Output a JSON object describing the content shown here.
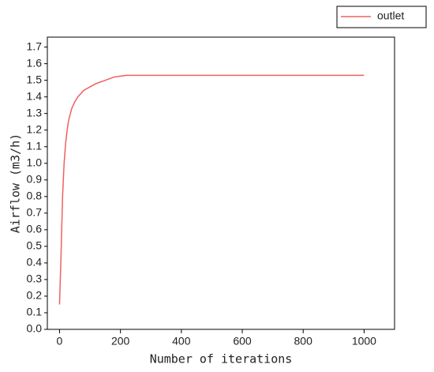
{
  "chart_data": {
    "type": "line",
    "xlabel": "Number of iterations",
    "ylabel": "Airflow (m3/h)",
    "x": [
      0,
      5,
      10,
      15,
      20,
      25,
      30,
      40,
      50,
      60,
      80,
      100,
      120,
      150,
      180,
      220,
      1000
    ],
    "series": [
      {
        "name": "outlet",
        "color": "#f06060",
        "values": [
          0.15,
          0.45,
          0.8,
          1.0,
          1.12,
          1.2,
          1.26,
          1.33,
          1.37,
          1.4,
          1.44,
          1.46,
          1.48,
          1.5,
          1.52,
          1.53,
          1.53
        ]
      }
    ],
    "xlim": [
      -40,
      1100
    ],
    "xticks": [
      0,
      200,
      400,
      600,
      800,
      1000
    ],
    "ylim": [
      0,
      1.76
    ],
    "yticks": [
      {
        "value": 0,
        "label": "0.0"
      },
      0.1,
      0.2,
      0.3,
      0.4,
      0.5,
      0.6,
      0.7,
      0.8,
      0.9,
      {
        "value": 1,
        "label": "1.0"
      },
      1.1,
      1.2,
      1.3,
      1.4,
      1.5,
      1.6,
      1.7
    ],
    "legend": "top-right",
    "grid": false
  }
}
